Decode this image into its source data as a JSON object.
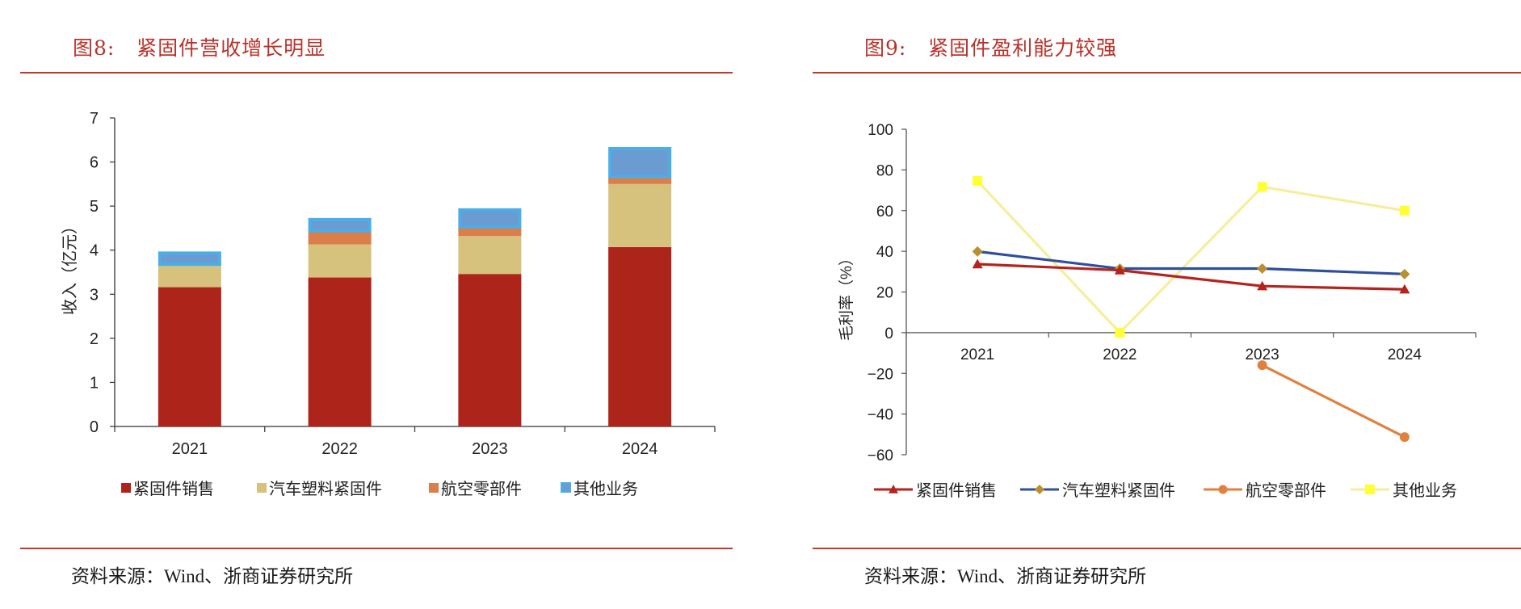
{
  "figures": [
    {
      "title": "图8:   紧固件营收增长明显",
      "source": "资料来源：Wind、浙商证券研究所"
    },
    {
      "title": "图9:   紧固件盈利能力较强",
      "source": "资料来源：Wind、浙商证券研究所"
    }
  ],
  "chart_data": [
    {
      "type": "bar",
      "stacked": true,
      "title": "紧固件营收增长明显",
      "xlabel": "",
      "ylabel": "收入（亿元）",
      "categories": [
        "2021",
        "2022",
        "2023",
        "2024"
      ],
      "yticks": [
        "0",
        "1",
        "2",
        "3",
        "4",
        "5",
        "6",
        "7"
      ],
      "ylim": [
        0,
        7
      ],
      "legend_position": "bottom",
      "grid": false,
      "series": [
        {
          "name": "紧固件销售",
          "color": "#ad241a",
          "values": [
            3.16,
            3.38,
            3.46,
            4.07
          ]
        },
        {
          "name": "汽车塑料紧固件",
          "color": "#d6c27c",
          "values": [
            0.52,
            0.75,
            0.86,
            1.43
          ]
        },
        {
          "name": "航空零部件",
          "color": "#db7f4a",
          "values": [
            0.0,
            0.31,
            0.21,
            0.17
          ]
        },
        {
          "name": "其他业务",
          "color": "#6a9bd1",
          "border": "#4aaee8",
          "values": [
            0.29,
            0.29,
            0.42,
            0.67
          ]
        }
      ]
    },
    {
      "type": "line",
      "title": "紧固件盈利能力较强",
      "xlabel": "",
      "ylabel": "毛利率（%）",
      "categories": [
        "2021",
        "2022",
        "2023",
        "2024"
      ],
      "yticks": [
        "100",
        "80",
        "60",
        "40",
        "20",
        "0",
        "−20",
        "−40",
        "−60"
      ],
      "ylim": [
        -60,
        100
      ],
      "legend_position": "bottom",
      "grid": false,
      "series": [
        {
          "name": "紧固件销售",
          "color": "#b5231d",
          "marker": "triangle",
          "values": [
            33.7,
            30.7,
            22.9,
            21.3
          ]
        },
        {
          "name": "汽车塑料紧固件",
          "color": "#2f4f9c",
          "marker_color": "#b8902e",
          "marker": "diamond",
          "values": [
            39.9,
            31.5,
            31.5,
            28.8
          ]
        },
        {
          "name": "航空零部件",
          "color": "#e0813f",
          "marker": "circle",
          "values": [
            null,
            null,
            -16.0,
            -51.3
          ]
        },
        {
          "name": "其他业务",
          "color": "#f6ee9c",
          "marker_color": "#ffff33",
          "marker": "square",
          "values": [
            74.6,
            0.0,
            71.7,
            60.0
          ]
        }
      ]
    }
  ]
}
